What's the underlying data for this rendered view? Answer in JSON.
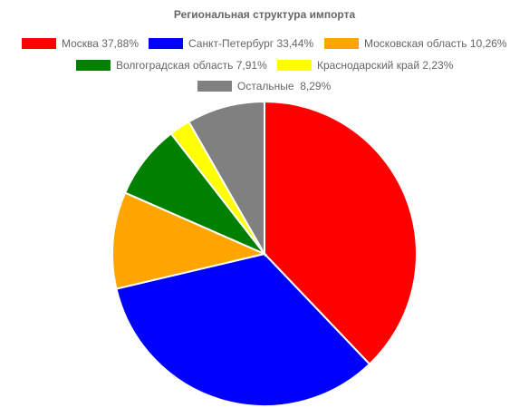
{
  "chart_data": {
    "type": "pie",
    "title": "Региональная структура импорта",
    "categories": [
      "Москва 37,88%",
      "Санкт-Петербург 33,44%",
      "Московская область 10,26%",
      "Волгоградская область 7,91%",
      "Краснодарский край 2,23%",
      "Остальные  8,29%"
    ],
    "values": [
      37.88,
      33.44,
      10.26,
      7.91,
      2.23,
      8.29
    ],
    "colors": [
      "#ff0000",
      "#0000ff",
      "#ffa500",
      "#008000",
      "#ffff00",
      "#808080"
    ]
  }
}
